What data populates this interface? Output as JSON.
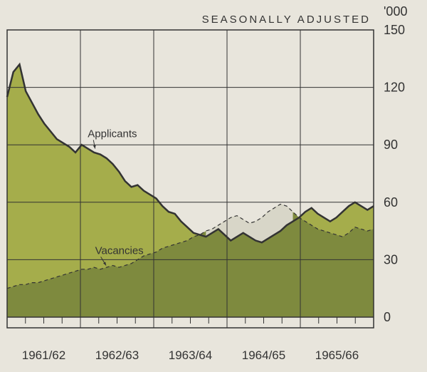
{
  "header": "SEASONALLY ADJUSTED",
  "unit_label": "'000",
  "chart": {
    "type": "area",
    "background_color": "#e8e5dc",
    "plot_border_color": "#333333",
    "grid_color": "#333333",
    "y_axis": {
      "min": 0,
      "max": 150,
      "ticks": [
        0,
        30,
        60,
        90,
        120,
        150
      ],
      "fontsize": 18
    },
    "x_axis": {
      "year_labels": [
        "1961/62",
        "1962/63",
        "1963/64",
        "1964/65",
        "1965/66"
      ],
      "minor_ticks_per_year": 4,
      "fontsize": 17
    },
    "series": {
      "applicants": {
        "label": "Applicants",
        "color_fill": "#a5ad4b",
        "stroke": "#333333",
        "stroke_width": 2.5,
        "label_pos": {
          "x": 0.22,
          "y": 94
        },
        "arrow_to": {
          "x": 0.24,
          "y": 88
        },
        "values": [
          115,
          128,
          132,
          118,
          112,
          106,
          101,
          97,
          93,
          91,
          89,
          86,
          90,
          88,
          86,
          85,
          83,
          80,
          76,
          71,
          68,
          69,
          66,
          64,
          62,
          58,
          55,
          54,
          50,
          47,
          44,
          43,
          42,
          44,
          46,
          43,
          40,
          42,
          44,
          42,
          40,
          39,
          41,
          43,
          45,
          48,
          50,
          52,
          55,
          57,
          54,
          52,
          50,
          52,
          55,
          58,
          60,
          58,
          56,
          58
        ]
      },
      "vacancies": {
        "label": "Vacancies",
        "color_fill": "#7e8a3e",
        "stroke": "#333333",
        "stroke_width": 1.2,
        "dash": "5,4",
        "between_fill": "#d8d6c8",
        "label_pos": {
          "x": 0.24,
          "y": 33
        },
        "arrow_to": {
          "x": 0.27,
          "y": 27
        },
        "values": [
          15,
          16,
          17,
          17,
          18,
          18,
          19,
          20,
          21,
          22,
          23,
          24,
          25,
          25,
          26,
          25,
          26,
          27,
          26,
          27,
          28,
          30,
          32,
          33,
          34,
          36,
          37,
          38,
          39,
          40,
          42,
          43,
          45,
          46,
          48,
          50,
          52,
          53,
          51,
          49,
          50,
          52,
          55,
          57,
          59,
          58,
          55,
          52,
          50,
          48,
          46,
          45,
          44,
          43,
          42,
          44,
          47,
          46,
          45,
          46
        ]
      }
    }
  }
}
